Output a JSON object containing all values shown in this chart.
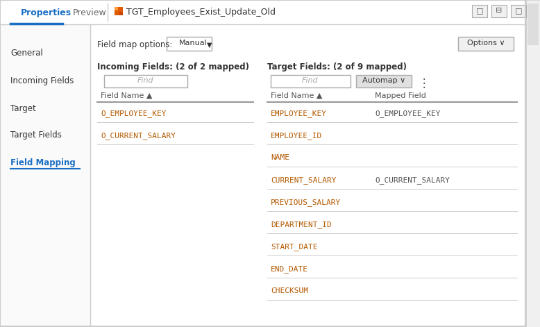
{
  "bg_color": "#f5f5f5",
  "panel_bg": "#ffffff",
  "title_bar_bg": "#ffffff",
  "title_bar_border": "#cccccc",
  "tab_active": "Properties",
  "tabs": [
    "Properties",
    "Preview"
  ],
  "title_text": "TGT_Employees_Exist_Update_Old",
  "title_icon_color": "#e05a00",
  "blue_underline": "#1a6fc4",
  "nav_items": [
    "General",
    "Incoming Fields",
    "Target",
    "Target Fields",
    "Field Mapping"
  ],
  "nav_active": "Field Mapping",
  "nav_active_color": "#1a6fc4",
  "nav_text_color": "#333333",
  "field_map_label": "Field map options:",
  "field_map_value": "Manual",
  "options_btn": "Options ∨",
  "incoming_title": "Incoming Fields: (2 of 2 mapped)",
  "target_title": "Target Fields: (2 of 9 mapped)",
  "find_placeholder": "Find",
  "automap_btn": "Automap ∨",
  "col_header_field": "Field Name ▲",
  "col_header_mapped": "Mapped Field",
  "incoming_fields": [
    "O_EMPLOYEE_KEY",
    "O_CURRENT_SALARY"
  ],
  "target_fields": [
    "EMPLOYEE_KEY",
    "EMPLOYEE_ID",
    "NAME",
    "CURRENT_SALARY",
    "PREVIOUS_SALARY",
    "DEPARTMENT_ID",
    "START_DATE",
    "END_DATE",
    "CHECKSUM"
  ],
  "mapped_pairs": {
    "EMPLOYEE_KEY": "O_EMPLOYEE_KEY",
    "CURRENT_SALARY": "O_CURRENT_SALARY"
  },
  "field_color_incoming": "#b35900",
  "field_color_target": "#b35900",
  "mapped_field_color": "#555555",
  "header_color": "#555555",
  "separator_color": "#cccccc",
  "border_color": "#cccccc",
  "button_bg": "#f0f0f0",
  "button_border": "#aaaaaa",
  "tab_active_color": "#1a6fc4",
  "tab_text_color": "#666666",
  "scrollbar_color": "#dddddd"
}
